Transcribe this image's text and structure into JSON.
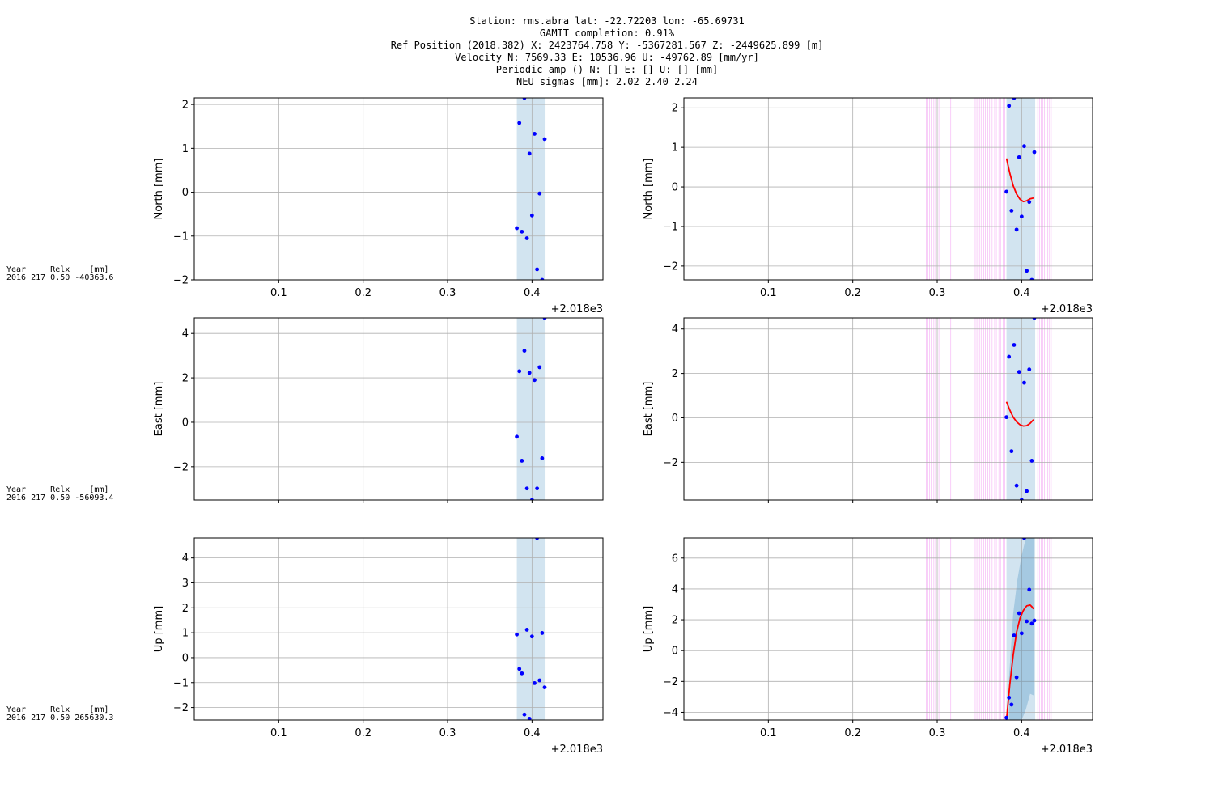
{
  "header": {
    "lines": [
      "Station: rms.abra lat: -22.72203 lon: -65.69731",
      "GAMIT completion: 0.91%",
      "Ref Position (2018.382) X: 2423764.758 Y: -5367281.567 Z: -2449625.899 [m]",
      "Velocity N: 7569.33 E: 10536.96 U: -49762.89 [mm/yr]",
      "Periodic amp () N: [] E: [] U: [] [mm]",
      "NEU sigmas [mm]:  2.02  2.40  2.24"
    ]
  },
  "side_notes": [
    {
      "line1": "Year     Relx    [mm]",
      "line2": "2016 217 0.50 -40363.6"
    },
    {
      "line1": "Year     Relx    [mm]",
      "line2": "2016 217 0.50 -56093.4"
    },
    {
      "line1": "Year     Relx    [mm]",
      "line2": "2016 217 0.50 265630.3"
    }
  ],
  "colors": {
    "points": "#0000ff",
    "model": "#ff0000",
    "span": "#1f77b4",
    "jumps": "#ee82ee",
    "grid": "#b0b0b0"
  },
  "chart_data": [
    {
      "type": "scatter",
      "component": "North",
      "column": "left",
      "ylabel": "North [mm]",
      "xlim": [
        0.0,
        0.484
      ],
      "ylim": [
        -2.0,
        2.15
      ],
      "xticks": [
        0.1,
        0.2,
        0.3,
        0.4
      ],
      "xtick_labels": [
        "0.1",
        "0.2",
        "0.3",
        "0.4"
      ],
      "yticks": [
        -2,
        -1,
        0,
        1,
        2
      ],
      "ytick_labels": [
        "−2",
        "−1",
        "0",
        "1",
        "2"
      ],
      "x_offset_label": "+2.018e3",
      "span": [
        0.382,
        0.416
      ],
      "points": {
        "x": [
          0.382,
          0.385,
          0.388,
          0.391,
          0.394,
          0.397,
          0.4,
          0.403,
          0.406,
          0.409,
          0.412,
          0.415
        ],
        "y": [
          -0.82,
          1.58,
          -0.9,
          2.15,
          -1.05,
          0.88,
          -0.53,
          1.33,
          -1.76,
          -0.03,
          -2.0,
          1.21
        ]
      }
    },
    {
      "type": "scatter",
      "component": "North",
      "column": "right",
      "ylabel": "North [mm]",
      "xlim": [
        0.0,
        0.484
      ],
      "ylim": [
        -2.35,
        2.25
      ],
      "xticks": [
        0.1,
        0.2,
        0.3,
        0.4
      ],
      "xtick_labels": [
        "0.1",
        "0.2",
        "0.3",
        "0.4"
      ],
      "yticks": [
        -2,
        -1,
        0,
        1,
        2
      ],
      "ytick_labels": [
        "−2",
        "−1",
        "0",
        "1",
        "2"
      ],
      "x_offset_label": "+2.018e3",
      "span": [
        0.382,
        0.416
      ],
      "jumps": [
        0.287,
        0.289,
        0.291,
        0.293,
        0.296,
        0.298,
        0.302,
        0.316,
        0.345,
        0.347,
        0.35,
        0.352,
        0.355,
        0.357,
        0.36,
        0.362,
        0.365,
        0.368,
        0.37,
        0.373,
        0.375,
        0.378,
        0.38,
        0.419,
        0.421,
        0.423,
        0.425,
        0.427,
        0.429,
        0.431,
        0.433,
        0.435
      ],
      "points": {
        "x": [
          0.382,
          0.385,
          0.388,
          0.391,
          0.394,
          0.397,
          0.4,
          0.403,
          0.406,
          0.409,
          0.412,
          0.415
        ],
        "y": [
          -0.12,
          2.05,
          -0.6,
          2.25,
          -1.08,
          0.75,
          -0.75,
          1.03,
          -2.12,
          -0.38,
          -2.35,
          0.88
        ]
      },
      "model": {
        "x": [
          0.382,
          0.386,
          0.39,
          0.394,
          0.398,
          0.402,
          0.406,
          0.41,
          0.414
        ],
        "y": [
          0.72,
          0.35,
          0.03,
          -0.18,
          -0.31,
          -0.37,
          -0.35,
          -0.3,
          -0.28
        ]
      }
    },
    {
      "type": "scatter",
      "component": "East",
      "column": "left",
      "ylabel": "East [mm]",
      "xlim": [
        0.0,
        0.484
      ],
      "ylim": [
        -3.5,
        4.7
      ],
      "xticks": [
        0.1,
        0.2,
        0.3,
        0.4
      ],
      "xtick_labels": [
        "",
        "",
        "",
        ""
      ],
      "yticks": [
        -2,
        0,
        2,
        4
      ],
      "ytick_labels": [
        "−2",
        "0",
        "2",
        "4"
      ],
      "span": [
        0.382,
        0.416
      ],
      "points": {
        "x": [
          0.382,
          0.385,
          0.388,
          0.391,
          0.394,
          0.397,
          0.4,
          0.403,
          0.406,
          0.409,
          0.412,
          0.415
        ],
        "y": [
          -0.65,
          2.3,
          -1.73,
          3.22,
          -2.98,
          2.23,
          -3.5,
          1.9,
          -2.98,
          2.48,
          -1.62,
          4.7
        ]
      }
    },
    {
      "type": "scatter",
      "component": "East",
      "column": "right",
      "ylabel": "East [mm]",
      "xlim": [
        0.0,
        0.484
      ],
      "ylim": [
        -3.7,
        4.5
      ],
      "xticks": [
        0.1,
        0.2,
        0.3,
        0.4
      ],
      "xtick_labels": [
        "",
        "",
        "",
        ""
      ],
      "yticks": [
        -2,
        0,
        2,
        4
      ],
      "ytick_labels": [
        "−2",
        "0",
        "2",
        "4"
      ],
      "span": [
        0.382,
        0.416
      ],
      "jumps": [
        0.287,
        0.289,
        0.291,
        0.293,
        0.296,
        0.298,
        0.302,
        0.316,
        0.345,
        0.347,
        0.35,
        0.352,
        0.355,
        0.357,
        0.36,
        0.362,
        0.365,
        0.368,
        0.37,
        0.373,
        0.375,
        0.378,
        0.38,
        0.419,
        0.421,
        0.423,
        0.425,
        0.427,
        0.429,
        0.431,
        0.433,
        0.435
      ],
      "points": {
        "x": [
          0.382,
          0.385,
          0.388,
          0.391,
          0.394,
          0.397,
          0.4,
          0.403,
          0.406,
          0.409,
          0.412,
          0.415
        ],
        "y": [
          0.03,
          2.75,
          -1.5,
          3.28,
          -3.05,
          2.07,
          -3.7,
          1.58,
          -3.3,
          2.18,
          -1.93,
          4.5
        ]
      },
      "model": {
        "x": [
          0.382,
          0.386,
          0.39,
          0.394,
          0.398,
          0.402,
          0.406,
          0.41,
          0.414
        ],
        "y": [
          0.72,
          0.35,
          0.03,
          -0.18,
          -0.31,
          -0.37,
          -0.35,
          -0.25,
          -0.08
        ]
      }
    },
    {
      "type": "scatter",
      "component": "Up",
      "column": "left",
      "ylabel": "Up [mm]",
      "xlim": [
        0.0,
        0.484
      ],
      "ylim": [
        -2.5,
        4.8
      ],
      "xticks": [
        0.1,
        0.2,
        0.3,
        0.4
      ],
      "xtick_labels": [
        "0.1",
        "0.2",
        "0.3",
        "0.4"
      ],
      "yticks": [
        -2,
        -1,
        0,
        1,
        2,
        3,
        4
      ],
      "ytick_labels": [
        "−2",
        "−1",
        "0",
        "1",
        "2",
        "3",
        "4"
      ],
      "x_offset_label": "+2.018e3",
      "span": [
        0.382,
        0.416
      ],
      "points": {
        "x": [
          0.382,
          0.385,
          0.388,
          0.391,
          0.394,
          0.397,
          0.4,
          0.403,
          0.406,
          0.409,
          0.412,
          0.415
        ],
        "y": [
          0.93,
          -0.45,
          -0.63,
          -2.28,
          1.12,
          -2.45,
          0.85,
          -1.02,
          4.8,
          -0.91,
          0.99,
          -1.19
        ]
      }
    },
    {
      "type": "scatter",
      "component": "Up",
      "column": "right",
      "ylabel": "Up [mm]",
      "xlim": [
        0.0,
        0.484
      ],
      "ylim": [
        -4.5,
        7.3
      ],
      "xticks": [
        0.1,
        0.2,
        0.3,
        0.4
      ],
      "xtick_labels": [
        "0.1",
        "0.2",
        "0.3",
        "0.4"
      ],
      "yticks": [
        -4,
        -2,
        0,
        2,
        4,
        6
      ],
      "ytick_labels": [
        "−4",
        "−2",
        "0",
        "2",
        "4",
        "6"
      ],
      "x_offset_label": "+2.018e3",
      "span": [
        0.382,
        0.416
      ],
      "jumps": [
        0.287,
        0.289,
        0.291,
        0.293,
        0.296,
        0.298,
        0.302,
        0.316,
        0.345,
        0.347,
        0.35,
        0.352,
        0.355,
        0.357,
        0.36,
        0.362,
        0.365,
        0.368,
        0.37,
        0.373,
        0.375,
        0.378,
        0.38,
        0.419,
        0.421,
        0.423,
        0.425,
        0.427,
        0.429,
        0.431,
        0.433,
        0.435
      ],
      "points": {
        "x": [
          0.382,
          0.385,
          0.388,
          0.391,
          0.394,
          0.397,
          0.4,
          0.403,
          0.406,
          0.409,
          0.412,
          0.415
        ],
        "y": [
          -4.35,
          -3.05,
          -3.5,
          0.98,
          -1.73,
          2.42,
          1.12,
          7.3,
          1.9,
          3.95,
          1.75,
          1.95
        ]
      },
      "model": {
        "x": [
          0.382,
          0.386,
          0.39,
          0.394,
          0.398,
          0.402,
          0.406,
          0.41,
          0.412,
          0.414
        ],
        "y": [
          -4.5,
          -2.2,
          -0.3,
          1.2,
          2.1,
          2.6,
          2.9,
          2.95,
          2.85,
          2.7
        ]
      },
      "band": {
        "x": [
          0.385,
          0.39,
          0.395,
          0.4,
          0.405,
          0.41,
          0.414
        ],
        "lower": [
          -4.5,
          -4.5,
          -4.5,
          -4.5,
          -3.8,
          -2.8,
          -2.9
        ],
        "upper": [
          -1.8,
          2.4,
          4.6,
          6.2,
          7.3,
          7.3,
          7.3
        ]
      }
    }
  ]
}
